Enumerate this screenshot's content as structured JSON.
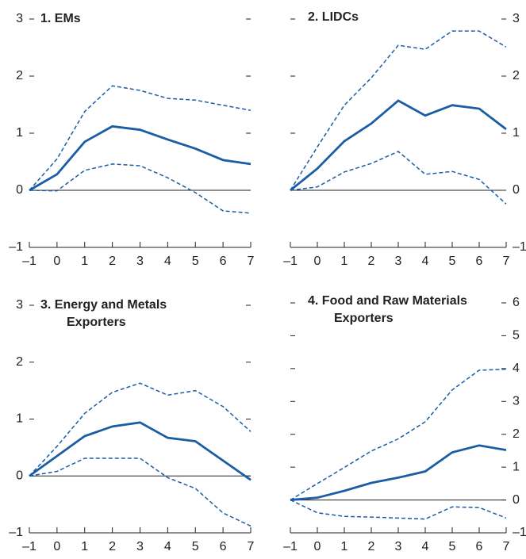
{
  "chart_data": [
    {
      "type": "line",
      "title": [
        "1. EMs"
      ],
      "axis_side": "left",
      "x": [
        -1,
        0,
        1,
        2,
        3,
        4,
        5,
        6,
        7
      ],
      "xlim": [
        -1,
        7
      ],
      "xticks": [
        {
          "value": -1,
          "label": "–1"
        },
        0,
        1,
        2,
        3,
        4,
        5,
        6,
        7
      ],
      "ylim": [
        -1,
        3
      ],
      "yticks": [
        {
          "value": -1,
          "label": "–1"
        },
        0,
        1,
        2,
        3
      ],
      "series": [
        {
          "color": "#1a5da6",
          "dash": false,
          "values": [
            0,
            0.28,
            0.85,
            1.12,
            1.06,
            0.89,
            0.73,
            0.53,
            0.46
          ]
        },
        {
          "color": "#1a5da6",
          "dash": true,
          "values": [
            0,
            0.55,
            1.38,
            1.83,
            1.75,
            1.61,
            1.58,
            1.49,
            1.4
          ]
        },
        {
          "color": "#1a5da6",
          "dash": true,
          "values": [
            0,
            -0.01,
            0.35,
            0.46,
            0.43,
            0.22,
            -0.04,
            -0.36,
            -0.4
          ]
        }
      ]
    },
    {
      "type": "line",
      "title": [
        "2. LIDCs"
      ],
      "axis_side": "right",
      "x": [
        -1,
        0,
        1,
        2,
        3,
        4,
        5,
        6,
        7
      ],
      "xlim": [
        -1,
        7
      ],
      "xticks": [
        {
          "value": -1,
          "label": "–1"
        },
        0,
        1,
        2,
        3,
        4,
        5,
        6,
        7
      ],
      "ylim": [
        -1,
        3
      ],
      "yticks": [
        {
          "value": -1,
          "label": "–1"
        },
        0,
        1,
        2,
        3
      ],
      "series": [
        {
          "color": "#1a5da6",
          "dash": false,
          "values": [
            0,
            0.38,
            0.86,
            1.17,
            1.57,
            1.31,
            1.49,
            1.43,
            1.07
          ]
        },
        {
          "color": "#1a5da6",
          "dash": true,
          "values": [
            0,
            0.76,
            1.49,
            1.97,
            2.54,
            2.47,
            2.79,
            2.79,
            2.51
          ]
        },
        {
          "color": "#1a5da6",
          "dash": true,
          "values": [
            0,
            0.06,
            0.32,
            0.47,
            0.68,
            0.28,
            0.33,
            0.19,
            -0.24
          ]
        }
      ]
    },
    {
      "type": "line",
      "title": [
        "3. Energy and Metals",
        "Exporters"
      ],
      "axis_side": "left",
      "x": [
        -1,
        0,
        1,
        2,
        3,
        4,
        5,
        6,
        7
      ],
      "xlim": [
        -1,
        7
      ],
      "xticks": [
        {
          "value": -1,
          "label": "–1"
        },
        0,
        1,
        2,
        3,
        4,
        5,
        6,
        7
      ],
      "ylim": [
        -1,
        3
      ],
      "yticks": [
        {
          "value": -1,
          "label": "–1"
        },
        0,
        1,
        2,
        3
      ],
      "series": [
        {
          "color": "#1a5da6",
          "dash": false,
          "values": [
            0,
            0.35,
            0.7,
            0.87,
            0.94,
            0.67,
            0.61,
            0.27,
            -0.07
          ]
        },
        {
          "color": "#1a5da6",
          "dash": true,
          "values": [
            0,
            0.52,
            1.1,
            1.47,
            1.63,
            1.42,
            1.5,
            1.22,
            0.78
          ]
        },
        {
          "color": "#1a5da6",
          "dash": true,
          "values": [
            0,
            0.08,
            0.31,
            0.31,
            0.31,
            -0.03,
            -0.22,
            -0.65,
            -0.88
          ]
        }
      ]
    },
    {
      "type": "line",
      "title": [
        "4. Food and Raw Materials",
        "Exporters"
      ],
      "axis_side": "right",
      "x": [
        -1,
        0,
        1,
        2,
        3,
        4,
        5,
        6,
        7
      ],
      "xlim": [
        -1,
        7
      ],
      "xticks": [
        {
          "value": -1,
          "label": "–1"
        },
        0,
        1,
        2,
        3,
        4,
        5,
        6,
        7
      ],
      "ylim": [
        -1,
        6
      ],
      "yticks": [
        {
          "value": -1,
          "label": "–1"
        },
        0,
        1,
        2,
        3,
        4,
        5,
        6
      ],
      "series": [
        {
          "color": "#1a5da6",
          "dash": false,
          "values": [
            0,
            0.07,
            0.28,
            0.52,
            0.68,
            0.87,
            1.45,
            1.66,
            1.52
          ]
        },
        {
          "color": "#1a5da6",
          "dash": true,
          "values": [
            0,
            0.5,
            0.99,
            1.49,
            1.86,
            2.38,
            3.35,
            3.95,
            3.98
          ]
        },
        {
          "color": "#1a5da6",
          "dash": true,
          "values": [
            0,
            -0.39,
            -0.5,
            -0.52,
            -0.55,
            -0.58,
            -0.21,
            -0.23,
            -0.55
          ]
        }
      ]
    }
  ]
}
